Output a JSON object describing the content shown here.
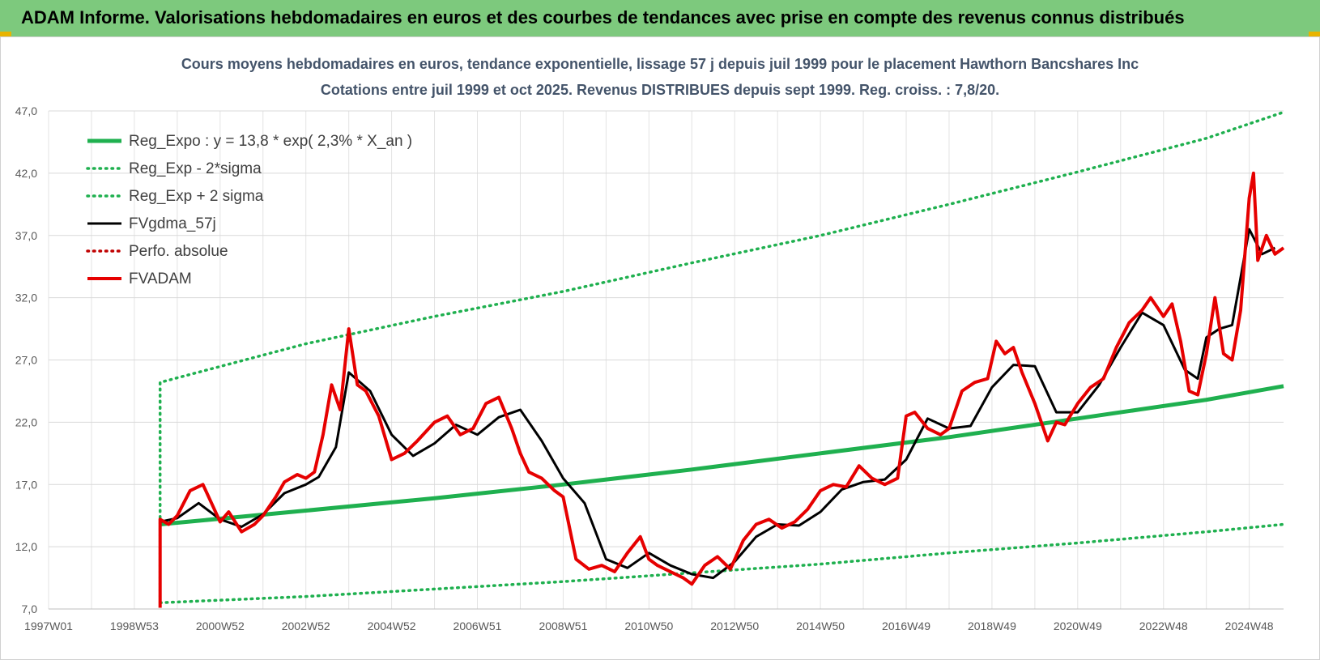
{
  "banner": {
    "title": "ADAM Informe. Valorisations hebdomadaires en euros et des courbes de tendances avec prise en compte des revenus connus distribués"
  },
  "chart_data": {
    "type": "line",
    "title": "Cours moyens hebdomadaires en euros, tendance exponentielle, lissage 57 j depuis juil 1999 pour le placement Hawthorn Bancshares Inc",
    "subtitle": "Cotations entre juil 1999 et oct 2025. Revenus DISTRIBUES depuis sept 1999. Reg. croiss. : 7,8/20.",
    "xlabel": "",
    "ylabel": "",
    "xlim": [
      1997.0,
      2025.8
    ],
    "ylim": [
      7.0,
      47.0
    ],
    "y_ticks": [
      "7,0",
      "12,0",
      "17,0",
      "22,0",
      "27,0",
      "32,0",
      "37,0",
      "42,0",
      "47,0"
    ],
    "y_tick_values": [
      7,
      12,
      17,
      22,
      27,
      32,
      37,
      42,
      47
    ],
    "x_ticks": [
      "1997W01",
      "1998W53",
      "2000W52",
      "2002W52",
      "2004W52",
      "2006W51",
      "2008W51",
      "2010W50",
      "2012W50",
      "2014W50",
      "2016W49",
      "2018W49",
      "2020W49",
      "2022W48",
      "2024W48"
    ],
    "x_tick_values": [
      1997.0,
      1999.0,
      2001.0,
      2003.0,
      2005.0,
      2007.0,
      2009.0,
      2011.0,
      2013.0,
      2015.0,
      2017.0,
      2019.0,
      2021.0,
      2023.0,
      2025.0
    ],
    "grid": true,
    "legend_position": "top-left",
    "series": [
      {
        "name": "Reg_Expo : y = 13,8 * exp( 2,3% *  X_an )",
        "color": "#1fb04f",
        "style": "solid",
        "x": [
          1999.6,
          2003.0,
          2006.0,
          2009.0,
          2012.0,
          2015.0,
          2018.0,
          2021.0,
          2024.0,
          2025.8
        ],
        "y": [
          13.8,
          14.9,
          15.9,
          17.0,
          18.2,
          19.5,
          20.8,
          22.3,
          23.8,
          24.9
        ]
      },
      {
        "name": "Reg_Exp - 2*sigma",
        "color": "#1fb04f",
        "style": "dotted",
        "x": [
          1999.6,
          2003.0,
          2006.0,
          2009.0,
          2012.0,
          2015.0,
          2018.0,
          2021.0,
          2024.0,
          2025.8
        ],
        "y": [
          7.5,
          8.0,
          8.6,
          9.2,
          9.9,
          10.6,
          11.5,
          12.3,
          13.2,
          13.8
        ]
      },
      {
        "name": "Reg_Exp + 2 sigma",
        "color": "#1fb04f",
        "style": "dotted",
        "x": [
          1999.6,
          1999.6,
          2003.0,
          2006.0,
          2009.0,
          2012.0,
          2015.0,
          2018.0,
          2021.0,
          2024.0,
          2025.8
        ],
        "y": [
          7.5,
          25.2,
          28.3,
          30.5,
          32.5,
          34.8,
          37.0,
          39.5,
          42.1,
          44.8,
          46.9
        ]
      },
      {
        "name": "FVgdma_57j",
        "color": "#000000",
        "style": "solid",
        "x": [
          1999.6,
          2000.0,
          2000.5,
          2001.0,
          2001.5,
          2002.0,
          2002.5,
          2003.0,
          2003.3,
          2003.7,
          2004.0,
          2004.5,
          2005.0,
          2005.5,
          2006.0,
          2006.5,
          2007.0,
          2007.5,
          2008.0,
          2008.5,
          2009.0,
          2009.5,
          2010.0,
          2010.5,
          2011.0,
          2011.5,
          2012.0,
          2012.5,
          2013.0,
          2013.5,
          2014.0,
          2014.5,
          2015.0,
          2015.5,
          2016.0,
          2016.5,
          2017.0,
          2017.5,
          2018.0,
          2018.5,
          2019.0,
          2019.5,
          2020.0,
          2020.5,
          2021.0,
          2021.5,
          2022.0,
          2022.5,
          2023.0,
          2023.5,
          2023.8,
          2024.0,
          2024.3,
          2024.6,
          2025.0,
          2025.3,
          2025.6
        ],
        "y": [
          14.0,
          14.3,
          15.5,
          14.2,
          13.6,
          14.6,
          16.3,
          17.0,
          17.6,
          20.0,
          26.0,
          24.5,
          21.0,
          19.3,
          20.3,
          21.8,
          21.0,
          22.4,
          23.0,
          20.5,
          17.5,
          15.5,
          11.0,
          10.3,
          11.5,
          10.5,
          9.8,
          9.5,
          10.8,
          12.8,
          13.8,
          13.7,
          14.8,
          16.6,
          17.2,
          17.4,
          19.0,
          22.3,
          21.5,
          21.7,
          24.8,
          26.6,
          26.5,
          22.8,
          22.8,
          25.0,
          28.0,
          30.8,
          29.8,
          26.2,
          25.5,
          28.8,
          29.5,
          29.8,
          37.5,
          35.5,
          36.0
        ]
      },
      {
        "name": "Perfo. absolue",
        "color": "#c00000",
        "style": "dotted",
        "x": [],
        "y": []
      },
      {
        "name": "FVADAM",
        "color": "#e60000",
        "style": "solid",
        "x": [
          1999.6,
          1999.6,
          1999.8,
          2000.0,
          2000.3,
          2000.6,
          2000.8,
          2001.0,
          2001.2,
          2001.5,
          2001.8,
          2002.0,
          2002.3,
          2002.5,
          2002.8,
          2003.0,
          2003.2,
          2003.4,
          2003.6,
          2003.8,
          2004.0,
          2004.2,
          2004.4,
          2004.7,
          2005.0,
          2005.3,
          2005.6,
          2006.0,
          2006.3,
          2006.6,
          2006.9,
          2007.2,
          2007.5,
          2007.8,
          2008.0,
          2008.2,
          2008.5,
          2008.8,
          2009.0,
          2009.3,
          2009.6,
          2009.9,
          2010.2,
          2010.5,
          2010.8,
          2011.0,
          2011.2,
          2011.5,
          2011.8,
          2012.0,
          2012.3,
          2012.6,
          2012.9,
          2013.2,
          2013.5,
          2013.8,
          2014.1,
          2014.4,
          2014.7,
          2015.0,
          2015.3,
          2015.6,
          2015.9,
          2016.2,
          2016.5,
          2016.8,
          2017.0,
          2017.2,
          2017.5,
          2017.8,
          2018.0,
          2018.3,
          2018.6,
          2018.9,
          2019.1,
          2019.3,
          2019.5,
          2019.7,
          2020.0,
          2020.3,
          2020.5,
          2020.7,
          2021.0,
          2021.3,
          2021.6,
          2021.9,
          2022.2,
          2022.5,
          2022.7,
          2023.0,
          2023.2,
          2023.4,
          2023.6,
          2023.8,
          2024.0,
          2024.2,
          2024.4,
          2024.6,
          2024.8,
          2025.0,
          2025.1,
          2025.2,
          2025.4,
          2025.6,
          2025.8
        ],
        "y": [
          7.1,
          14.2,
          13.8,
          14.5,
          16.5,
          17.0,
          15.5,
          14.0,
          14.8,
          13.2,
          13.8,
          14.5,
          16.0,
          17.2,
          17.8,
          17.5,
          18.0,
          21.0,
          25.0,
          23.0,
          29.5,
          25.0,
          24.5,
          22.5,
          19.0,
          19.5,
          20.5,
          22.0,
          22.5,
          21.0,
          21.5,
          23.5,
          24.0,
          21.5,
          19.5,
          18.0,
          17.5,
          16.5,
          16.0,
          11.0,
          10.2,
          10.5,
          10.0,
          11.5,
          12.8,
          11.0,
          10.5,
          10.0,
          9.5,
          9.0,
          10.5,
          11.2,
          10.2,
          12.5,
          13.8,
          14.2,
          13.5,
          14.0,
          15.0,
          16.5,
          17.0,
          16.8,
          18.5,
          17.5,
          17.0,
          17.5,
          22.5,
          22.8,
          21.5,
          21.0,
          21.5,
          24.5,
          25.2,
          25.5,
          28.5,
          27.5,
          28.0,
          26.0,
          23.5,
          20.5,
          22.0,
          21.8,
          23.5,
          24.8,
          25.5,
          28.0,
          30.0,
          31.0,
          32.0,
          30.5,
          31.5,
          28.5,
          24.5,
          24.2,
          27.5,
          32.0,
          27.5,
          27.0,
          31.0,
          40.0,
          42.0,
          35.0,
          37.0,
          35.5,
          36.0
        ]
      }
    ]
  }
}
